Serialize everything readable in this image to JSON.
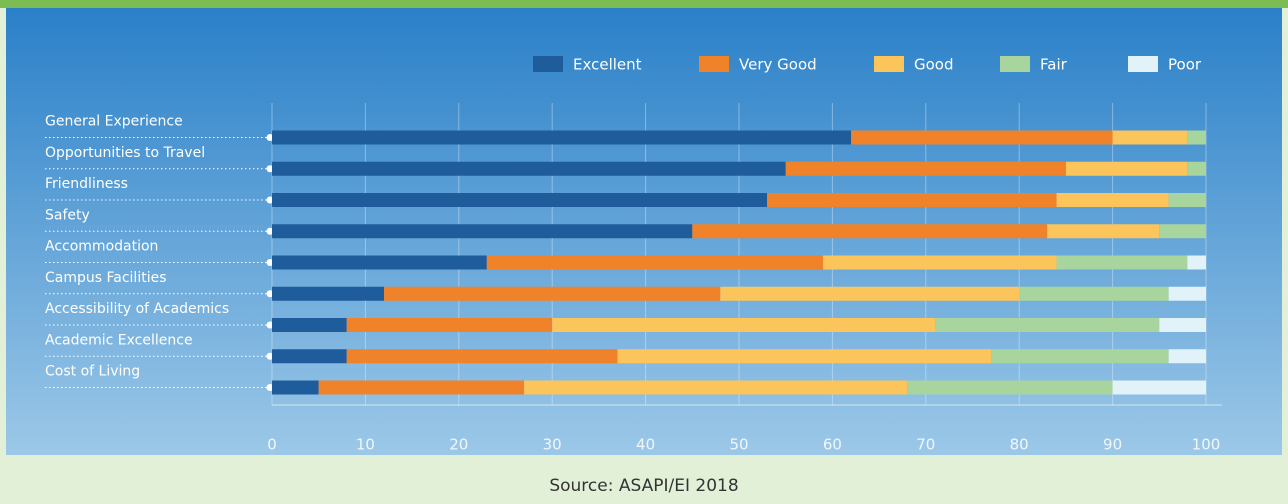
{
  "chart_data": {
    "type": "stacked-barh",
    "categories": [
      "General Experience",
      "Opportunities to Travel",
      "Friendliness",
      "Safety",
      "Accommodation",
      "Campus Facilities",
      "Accessibility of Academics",
      "Academic Excellence",
      "Cost of Living"
    ],
    "series": [
      {
        "name": "Excellent",
        "color": "#1f5c9b",
        "values": [
          62,
          55,
          53,
          45,
          23,
          12,
          8,
          8,
          5
        ]
      },
      {
        "name": "Very Good",
        "color": "#f0822a",
        "values": [
          28,
          30,
          31,
          38,
          36,
          36,
          22,
          29,
          22
        ]
      },
      {
        "name": "Good",
        "color": "#fcc55c",
        "values": [
          8,
          13,
          12,
          12,
          25,
          32,
          41,
          40,
          41
        ]
      },
      {
        "name": "Fair",
        "color": "#a7d59d",
        "values": [
          2,
          2,
          4,
          5,
          14,
          16,
          24,
          19,
          22
        ]
      },
      {
        "name": "Poor",
        "color": "#e1f2f8",
        "values": [
          0,
          0,
          0,
          0,
          2,
          4,
          5,
          4,
          10
        ]
      }
    ],
    "xlim": [
      0,
      100
    ],
    "xticks": [
      0,
      10,
      20,
      30,
      40,
      50,
      60,
      70,
      80,
      90,
      100
    ],
    "grid": true,
    "source": "Source: ASAPI/EI 2018"
  }
}
